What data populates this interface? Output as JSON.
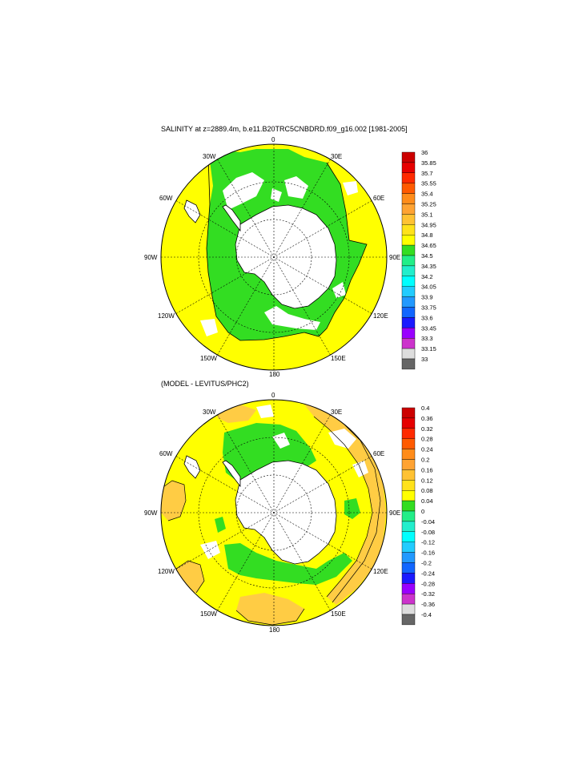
{
  "panel1": {
    "title": "SALINITY at z=2889.4m, b.e11.B20TRC5CNBDRD.f09_g16.002 [1981-2005]",
    "longitude_labels": [
      "0",
      "30E",
      "60E",
      "90E",
      "120E",
      "150E",
      "180",
      "150W",
      "120W",
      "90W",
      "60W",
      "30W"
    ],
    "colorbar": {
      "labels": [
        "36",
        "35.85",
        "35.7",
        "35.55",
        "35.4",
        "35.25",
        "35.1",
        "34.95",
        "34.8",
        "34.65",
        "34.5",
        "34.35",
        "34.2",
        "34.05",
        "33.9",
        "33.75",
        "33.6",
        "33.45",
        "33.3",
        "33.15",
        "33"
      ],
      "colors": [
        "#cc0000",
        "#e60000",
        "#ff2a00",
        "#ff5a00",
        "#ff8c1a",
        "#ffa333",
        "#ffc233",
        "#ffe21a",
        "#ffff00",
        "#33dd22",
        "#22ee88",
        "#22eecc",
        "#00ffff",
        "#22ccff",
        "#2299ff",
        "#1166ff",
        "#1a1aff",
        "#9900ff",
        "#cc33cc",
        "#dddddd",
        "#666666"
      ]
    }
  },
  "panel2": {
    "title": "(MODEL - LEVITUS/PHC2)",
    "longitude_labels": [
      "0",
      "30E",
      "60E",
      "90E",
      "120E",
      "150E",
      "180",
      "150W",
      "120W",
      "90W",
      "60W",
      "30W"
    ],
    "colorbar": {
      "labels": [
        "0.4",
        "0.36",
        "0.32",
        "0.28",
        "0.24",
        "0.2",
        "0.16",
        "0.12",
        "0.08",
        "0.04",
        "0",
        "-0.04",
        "-0.08",
        "-0.12",
        "-0.16",
        "-0.2",
        "-0.24",
        "-0.28",
        "-0.32",
        "-0.36",
        "-0.4"
      ],
      "colors": [
        "#cc0000",
        "#e60000",
        "#ff2a00",
        "#ff5a00",
        "#ff8c1a",
        "#ffa333",
        "#ffc233",
        "#ffe21a",
        "#ffff00",
        "#33dd22",
        "#22ee88",
        "#22eecc",
        "#00ffff",
        "#22ccff",
        "#2299ff",
        "#1166ff",
        "#1a1aff",
        "#9900ff",
        "#cc33cc",
        "#dddddd",
        "#666666"
      ]
    }
  },
  "palette": {
    "yellow": "#ffff00",
    "green": "#33dd22",
    "orange": "#ffcc44",
    "land": "#ffffff"
  }
}
